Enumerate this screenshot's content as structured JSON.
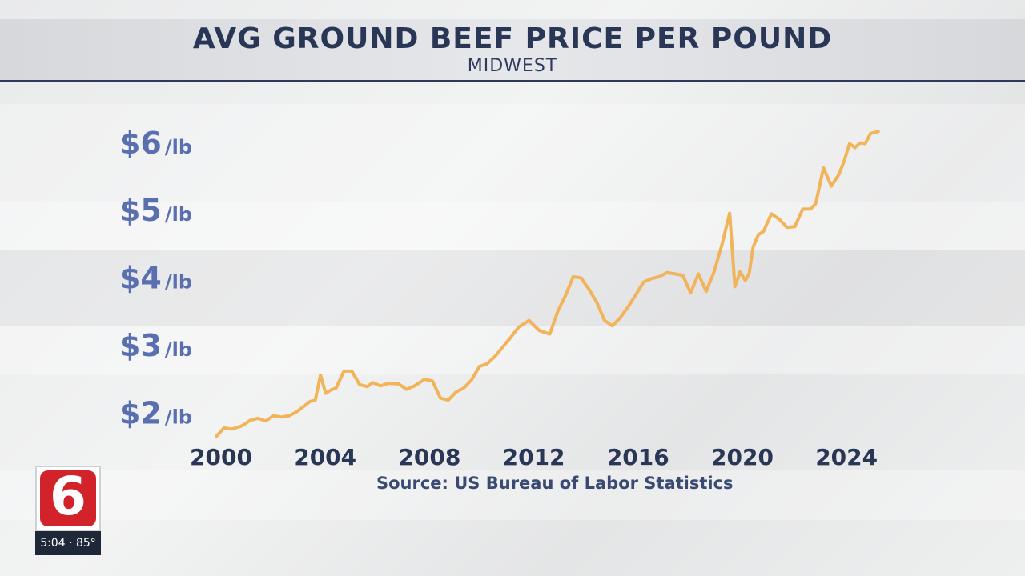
{
  "header": {
    "title": "AVG GROUND BEEF PRICE PER POUND",
    "subtitle": "MIDWEST"
  },
  "source": "Source: US Bureau of Labor Statistics",
  "station": {
    "logo_text": "6",
    "time_temp": "5:04 · 85°"
  },
  "colors": {
    "line": "#f2b45a",
    "tick_main": "#5a6fb0",
    "tick_unit": "#5a6fb0",
    "year": "#2a3656",
    "title": "#2a3656"
  },
  "chart_data": {
    "type": "line",
    "title": "AVG GROUND BEEF PRICE PER POUND",
    "subtitle": "MIDWEST",
    "xlabel": "",
    "ylabel": "",
    "xlim": [
      2000,
      2025.5
    ],
    "ylim": [
      1.6,
      6.4
    ],
    "y_ticks": [
      {
        "value": 2,
        "main": "$2",
        "unit": "/lb"
      },
      {
        "value": 3,
        "main": "$3",
        "unit": "/lb"
      },
      {
        "value": 4,
        "main": "$4",
        "unit": "/lb"
      },
      {
        "value": 5,
        "main": "$5",
        "unit": "/lb"
      },
      {
        "value": 6,
        "main": "$6",
        "unit": "/lb"
      }
    ],
    "x_ticks": [
      "2000",
      "2004",
      "2008",
      "2012",
      "2016",
      "2020",
      "2024"
    ],
    "grid": false,
    "legend": "none",
    "series": [
      {
        "x": [
          2000.0,
          2000.3,
          2000.6,
          2001.0,
          2001.3,
          2001.6,
          2001.9,
          2002.2,
          2002.5,
          2002.8,
          2003.1,
          2003.4,
          2003.6,
          2003.8,
          2004.0,
          2004.2,
          2004.4,
          2004.6,
          2004.9,
          2005.2,
          2005.5,
          2005.8,
          2006.0,
          2006.3,
          2006.6,
          2007.0,
          2007.3,
          2007.6,
          2008.0,
          2008.3,
          2008.6,
          2008.9,
          2009.2,
          2009.5,
          2009.8,
          2010.1,
          2010.4,
          2010.7,
          2011.0,
          2011.3,
          2011.6,
          2012.0,
          2012.4,
          2012.8,
          2013.1,
          2013.4,
          2013.7,
          2014.0,
          2014.3,
          2014.6,
          2014.9,
          2015.2,
          2015.5,
          2015.8,
          2016.1,
          2016.4,
          2016.7,
          2017.0,
          2017.3,
          2017.6,
          2017.9,
          2018.2,
          2018.5,
          2018.8,
          2019.1,
          2019.4,
          2019.7,
          2019.9,
          2020.1,
          2020.3,
          2020.45,
          2020.6,
          2020.8,
          2021.0,
          2021.3,
          2021.6,
          2021.9,
          2022.2,
          2022.5,
          2022.8,
          2023.0,
          2023.3,
          2023.6,
          2023.9,
          2024.1,
          2024.3,
          2024.5,
          2024.7,
          2024.9,
          2025.1,
          2025.4
        ],
        "values": [
          1.71,
          1.84,
          1.82,
          1.87,
          1.95,
          1.98,
          1.94,
          2.02,
          2.0,
          2.02,
          2.08,
          2.17,
          2.23,
          2.25,
          2.62,
          2.35,
          2.4,
          2.43,
          2.68,
          2.68,
          2.48,
          2.45,
          2.51,
          2.46,
          2.5,
          2.49,
          2.41,
          2.46,
          2.56,
          2.53,
          2.28,
          2.25,
          2.37,
          2.43,
          2.55,
          2.75,
          2.79,
          2.9,
          3.04,
          3.18,
          3.33,
          3.43,
          3.28,
          3.23,
          3.56,
          3.8,
          4.08,
          4.06,
          3.89,
          3.7,
          3.43,
          3.35,
          3.47,
          3.63,
          3.81,
          4.0,
          4.05,
          4.08,
          4.14,
          4.12,
          4.1,
          3.84,
          4.12,
          3.86,
          4.15,
          4.55,
          5.02,
          3.93,
          4.15,
          4.02,
          4.13,
          4.52,
          4.7,
          4.75,
          5.01,
          4.93,
          4.81,
          4.82,
          5.08,
          5.08,
          5.16,
          5.69,
          5.42,
          5.6,
          5.8,
          6.05,
          5.99,
          6.06,
          6.05,
          6.2,
          6.23
        ]
      }
    ]
  }
}
